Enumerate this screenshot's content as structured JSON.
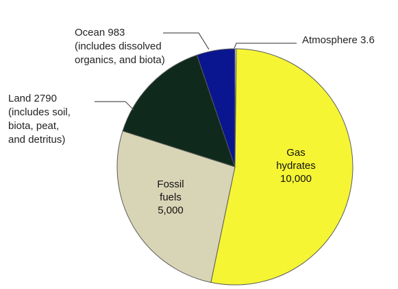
{
  "chart_data": {
    "type": "pie",
    "slices": [
      {
        "key": "atmosphere",
        "value": 3.6,
        "color": "#fefefe",
        "label_lines": [
          "Atmosphere  3.6"
        ]
      },
      {
        "key": "gas",
        "value": 10000,
        "color": "#f5f534",
        "label_lines": [
          "Gas",
          "hydrates",
          "10,000"
        ]
      },
      {
        "key": "fossil",
        "value": 5000,
        "color": "#d8d4b6",
        "label_lines": [
          "Fossil",
          "fuels",
          "5,000"
        ]
      },
      {
        "key": "land",
        "value": 2790,
        "color": "#0f2a1c",
        "label_lines": [
          "Land  2790",
          "(includes soil,",
          "biota, peat,",
          "and detritus)"
        ]
      },
      {
        "key": "ocean",
        "value": 983,
        "color": "#0a168f",
        "label_lines": [
          "Ocean  983",
          "(includes dissolved",
          "organics, and biota)"
        ]
      }
    ]
  }
}
